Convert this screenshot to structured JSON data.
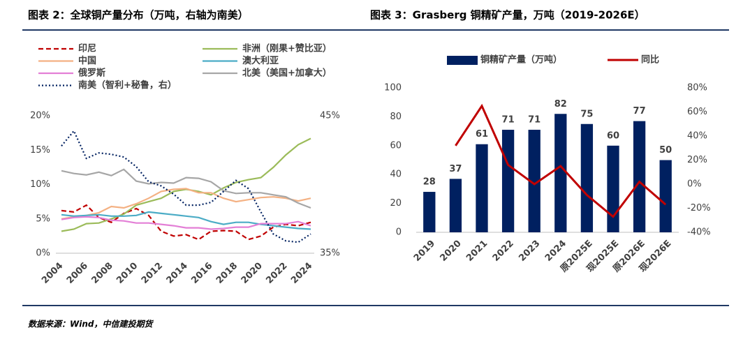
{
  "chart_data": [
    {
      "type": "line",
      "title": "图表 2：全球铜产量分布（万吨，右轴为南美）",
      "x": [
        2004,
        2005,
        2006,
        2007,
        2008,
        2009,
        2010,
        2011,
        2012,
        2013,
        2014,
        2015,
        2016,
        2017,
        2018,
        2019,
        2020,
        2021,
        2022,
        2023,
        2024
      ],
      "xlim": [
        2004,
        2024
      ],
      "xticks": [
        2004,
        2006,
        2008,
        2010,
        2012,
        2014,
        2016,
        2018,
        2020,
        2022,
        2024
      ],
      "ylim": [
        0,
        20
      ],
      "yticks": [
        {
          "value": 0,
          "label": "0%"
        },
        {
          "value": 5,
          "label": "5%"
        },
        {
          "value": 10,
          "label": "10%"
        },
        {
          "value": 15,
          "label": "15%"
        },
        {
          "value": 20,
          "label": "20%"
        }
      ],
      "y2lim": [
        35,
        45
      ],
      "y2ticks": [
        {
          "value": 35,
          "label": "35%"
        },
        {
          "value": 45,
          "label": "45%"
        }
      ],
      "series": [
        {
          "name": "印尼",
          "color": "#c00000",
          "style": "dashed",
          "values": [
            6.2,
            6.0,
            7.0,
            5.2,
            4.5,
            5.8,
            6.5,
            5.5,
            3.2,
            2.5,
            2.7,
            2.0,
            3.2,
            3.3,
            3.2,
            2.0,
            2.5,
            3.8,
            4.2,
            4.0,
            4.5
          ]
        },
        {
          "name": "非洲（刚果+赞比亚）",
          "color": "#9bbb59",
          "style": "solid",
          "values": [
            3.2,
            3.5,
            4.3,
            4.4,
            5.0,
            5.7,
            7.0,
            7.5,
            8.0,
            9.0,
            9.3,
            9.0,
            8.5,
            9.5,
            10.3,
            10.7,
            11.0,
            12.5,
            14.3,
            15.8,
            16.7
          ]
        },
        {
          "name": "中国",
          "color": "#f4b183",
          "style": "solid",
          "values": [
            5.0,
            5.3,
            5.5,
            5.9,
            6.8,
            6.6,
            7.2,
            8.0,
            9.0,
            9.3,
            9.4,
            8.8,
            8.8,
            8.0,
            7.5,
            7.8,
            8.1,
            8.2,
            8.0,
            7.6,
            8.0
          ]
        },
        {
          "name": "澳大利亚",
          "color": "#4bacc6",
          "style": "solid",
          "values": [
            5.6,
            5.4,
            5.5,
            5.6,
            5.4,
            5.4,
            5.5,
            6.0,
            5.8,
            5.6,
            5.4,
            5.2,
            4.6,
            4.2,
            4.5,
            4.5,
            4.2,
            4.0,
            3.8,
            3.6,
            3.5
          ]
        },
        {
          "name": "俄罗斯",
          "color": "#e37fd6",
          "style": "solid",
          "values": [
            4.9,
            5.2,
            5.3,
            5.2,
            4.8,
            4.7,
            4.4,
            4.4,
            4.2,
            4.0,
            3.7,
            3.7,
            3.5,
            3.6,
            3.8,
            3.8,
            4.3,
            4.3,
            4.3,
            4.6,
            4.0
          ]
        },
        {
          "name": "北美（美国+加拿大）",
          "color": "#a6a6a6",
          "style": "solid",
          "values": [
            12.0,
            11.6,
            11.4,
            11.8,
            11.3,
            12.2,
            10.5,
            10.1,
            10.3,
            10.2,
            11.0,
            10.9,
            10.4,
            9.1,
            8.7,
            8.8,
            8.8,
            8.5,
            8.2,
            7.3,
            6.6
          ]
        },
        {
          "name": "南美（智利+秘鲁，右）",
          "color": "#002060",
          "style": "dotted",
          "axis": "y2",
          "values": [
            42.8,
            43.9,
            41.9,
            42.3,
            42.2,
            42.0,
            41.3,
            40.2,
            39.9,
            39.3,
            38.5,
            38.5,
            38.7,
            39.5,
            40.3,
            39.7,
            38.0,
            36.4,
            35.9,
            35.8,
            36.4
          ]
        }
      ]
    },
    {
      "type": "bar",
      "title": "图表 3：Grasberg 铜精矿产量，万吨（2019-2026E）",
      "categories": [
        "2019",
        "2020",
        "2021",
        "2022",
        "2023",
        "2024",
        "原2025E",
        "现2025E",
        "原2026E",
        "现2026E"
      ],
      "ylim": [
        0,
        100
      ],
      "yticks": [
        0,
        20,
        40,
        60,
        80,
        100
      ],
      "y2lim": [
        -40,
        80
      ],
      "y2ticks": [
        {
          "value": -40,
          "label": "-40%"
        },
        {
          "value": -20,
          "label": "-20%"
        },
        {
          "value": 0,
          "label": "0%"
        },
        {
          "value": 20,
          "label": "20%"
        },
        {
          "value": 40,
          "label": "40%"
        },
        {
          "value": 60,
          "label": "60%"
        },
        {
          "value": 80,
          "label": "80%"
        }
      ],
      "series": [
        {
          "name": "铜精矿产量（万吨）",
          "color": "#002060",
          "type": "bar",
          "values": [
            28,
            37,
            61,
            71,
            71,
            82,
            75,
            60,
            77,
            50
          ]
        },
        {
          "name": "同比",
          "color": "#c00000",
          "type": "line",
          "axis": "y2",
          "values": [
            null,
            32,
            65,
            16,
            0,
            15,
            -9,
            -27,
            2,
            -17
          ]
        }
      ]
    }
  ],
  "source": "数据来源：Wind，中信建投期货"
}
